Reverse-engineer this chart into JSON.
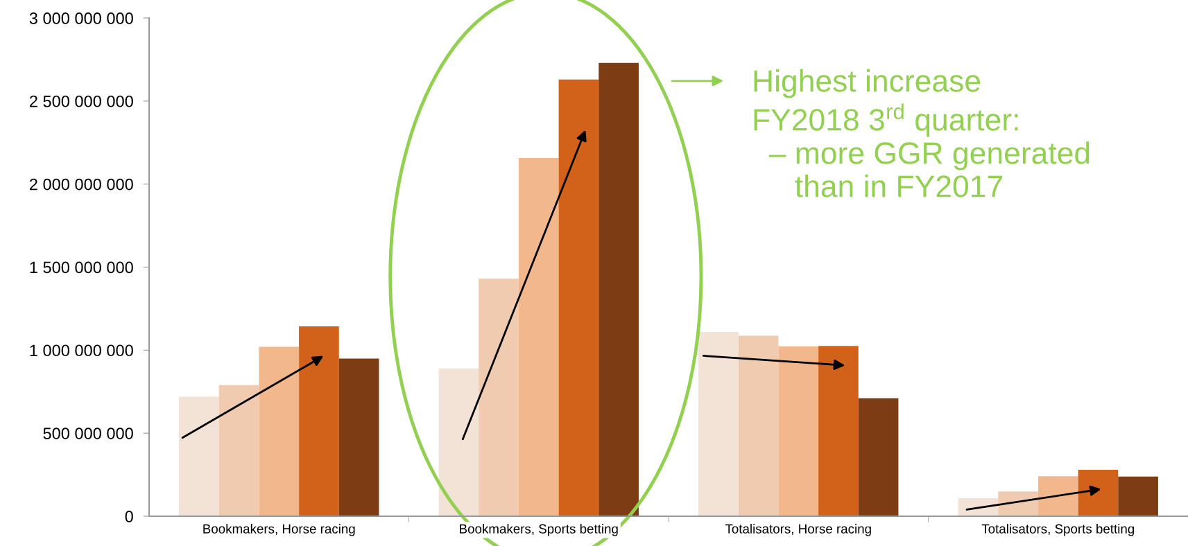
{
  "chart_data": {
    "type": "bar",
    "categories": [
      "Bookmakers, Horse racing",
      "Bookmakers, Sports betting",
      "Totalisators, Horse racing",
      "Totalisators, Sports betting"
    ],
    "series": [
      {
        "color": "#f3e2d6",
        "values": [
          720000000,
          890000000,
          1110000000,
          108000000
        ]
      },
      {
        "color": "#f0cbb0",
        "values": [
          790000000,
          1430000000,
          1087000000,
          149000000
        ]
      },
      {
        "color": "#f2b88c",
        "values": [
          1020000000,
          2157000000,
          1022000000,
          241000000
        ]
      },
      {
        "color": "#d2621a",
        "values": [
          1143000000,
          2630000000,
          1025000000,
          280000000
        ]
      },
      {
        "color": "#7e3c12",
        "values": [
          949000000,
          2730000000,
          710000000,
          239000000
        ]
      }
    ],
    "ylim": [
      0,
      3000000000
    ],
    "yticks": [
      {
        "value": 0,
        "label": "0"
      },
      {
        "value": 500000000,
        "label": "500 000 000"
      },
      {
        "value": 1000000000,
        "label": "1 000 000 000"
      },
      {
        "value": 1500000000,
        "label": "1 500 000 000"
      },
      {
        "value": 2000000000,
        "label": "2 000 000 000"
      },
      {
        "value": 2500000000,
        "label": "2 500 000 000"
      },
      {
        "value": 3000000000,
        "label": "3 000 000 000"
      }
    ],
    "grid": false,
    "legend": false,
    "annotations": [
      "Highest increase\nFY2018 3$^{rd}$ quarter:\n  – more GGR generated\n     than in FY2017"
    ]
  }
}
